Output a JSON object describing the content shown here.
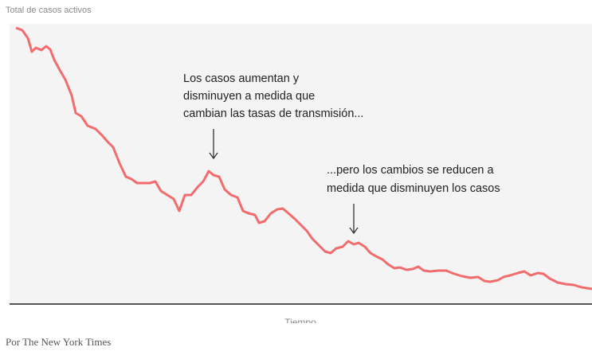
{
  "chart_data": {
    "type": "line",
    "y_label": "Total de casos activos",
    "x_label": "Tiempo",
    "source": "Por The New York Times",
    "color": "#f26b6d",
    "xlim": [
      0,
      731
    ],
    "ylim": [
      0,
      352
    ],
    "x": [
      8,
      16,
      23,
      28,
      33,
      40,
      46,
      51,
      56,
      63,
      70,
      78,
      83,
      90,
      98,
      108,
      116,
      123,
      130,
      138,
      146,
      153,
      160,
      168,
      176,
      183,
      190,
      198,
      206,
      213,
      220,
      228,
      236,
      243,
      250,
      256,
      263,
      270,
      278,
      286,
      293,
      300,
      308,
      313,
      320,
      328,
      336,
      343,
      350,
      358,
      366,
      373,
      380,
      388,
      396,
      403,
      410,
      418,
      425,
      432,
      438,
      446,
      453,
      460,
      468,
      475,
      483,
      490,
      498,
      506,
      513,
      520,
      528,
      538,
      548,
      558,
      568,
      578,
      588,
      596,
      603,
      613,
      620,
      628,
      638,
      646,
      654,
      663,
      670,
      678,
      688,
      698,
      708,
      718,
      731
    ],
    "values": [
      347,
      344,
      334,
      317,
      322,
      319,
      324,
      320,
      307,
      294,
      282,
      262,
      240,
      236,
      224,
      220,
      212,
      204,
      197,
      177,
      160,
      157,
      152,
      152,
      152,
      154,
      142,
      137,
      132,
      117,
      137,
      137,
      147,
      154,
      167,
      162,
      160,
      144,
      137,
      134,
      117,
      114,
      112,
      102,
      104,
      114,
      119,
      120,
      114,
      107,
      99,
      92,
      82,
      74,
      66,
      64,
      70,
      72,
      79,
      75,
      77,
      72,
      64,
      60,
      56,
      50,
      45,
      46,
      43,
      44,
      47,
      42,
      41,
      42,
      42,
      38,
      35,
      33,
      34,
      29,
      28,
      30,
      34,
      36,
      39,
      41,
      36,
      39,
      38,
      32,
      27,
      25,
      24,
      21,
      19
    ],
    "annotations": [
      {
        "lines": [
          "Los casos aumentan y",
          "disminuyen a medida que",
          "cambian las tasas de transmisión..."
        ]
      },
      {
        "lines": [
          "...pero los cambios se reducen a",
          "medida que disminuyen los casos"
        ]
      }
    ]
  }
}
